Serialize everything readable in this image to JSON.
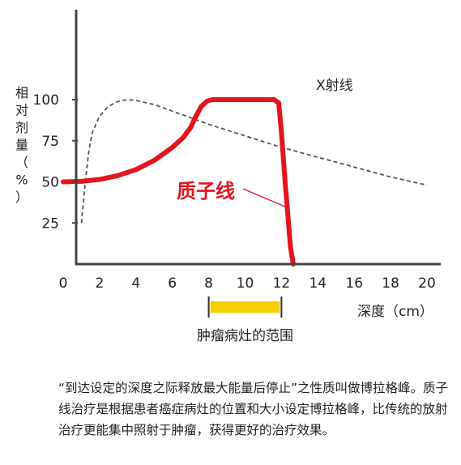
{
  "chart_data": {
    "type": "line",
    "xlabel": "深度（cm）",
    "ylabel": "相对剂量（%）",
    "xlim": [
      0,
      20
    ],
    "ylim": [
      0,
      120
    ],
    "x_ticks": [
      "0",
      "2",
      "4",
      "6",
      "8",
      "10",
      "12",
      "14",
      "16",
      "18",
      "20"
    ],
    "y_ticks": [
      "25",
      "50",
      "75",
      "100"
    ],
    "grid": false,
    "colors": {
      "proton": "#e4141c",
      "xray": "#555555",
      "tumor": "#f5d000",
      "axis": "#444444"
    },
    "series": [
      {
        "name": "X射线",
        "style": "dashed",
        "x": [
          1.0,
          1.2,
          1.4,
          1.6,
          2.0,
          2.4,
          2.8,
          3.2,
          3.6,
          4.0,
          5.0,
          6.0,
          7.0,
          8.0,
          9.0,
          10.0,
          11.0,
          12.0,
          13.0,
          14.0,
          15.0,
          16.0,
          17.0,
          18.0,
          19.0,
          20.0
        ],
        "y": [
          25,
          48,
          68,
          80,
          90,
          95,
          98,
          99.5,
          100,
          99.5,
          97,
          93,
          89,
          85,
          81.5,
          78,
          74.5,
          71,
          68,
          65,
          62,
          59,
          56,
          53,
          50.5,
          48
        ]
      },
      {
        "name": "质子线",
        "style": "solid",
        "x": [
          0,
          1,
          2,
          3,
          4,
          5,
          6,
          6.6,
          7.0,
          7.3,
          7.6,
          7.9,
          8.2,
          8.6,
          9,
          10,
          11,
          11.6,
          11.85,
          12.0,
          12.2,
          12.5,
          12.65
        ],
        "y": [
          50,
          50.3,
          51.5,
          53.8,
          57.5,
          63,
          71,
          77,
          83,
          90,
          96,
          99,
          100,
          100,
          100,
          100,
          100,
          100,
          98,
          80,
          50,
          10,
          0
        ]
      }
    ],
    "annotations": [
      {
        "text": "X射线",
        "target": "X射线"
      },
      {
        "text": "质子线",
        "target": "质子线"
      },
      {
        "text": "肿瘤病灶的范围",
        "x_range": [
          8,
          12
        ]
      }
    ]
  },
  "caption": "“到达设定的深度之际释放最大能量后停止”之性质叫做博拉格峰。质子线治疗是根据患者癌症病灶的位置和大小设定博拉格峰，比传统的放射治疗更能集中照射于肿瘤，获得更好的治疗效果。"
}
